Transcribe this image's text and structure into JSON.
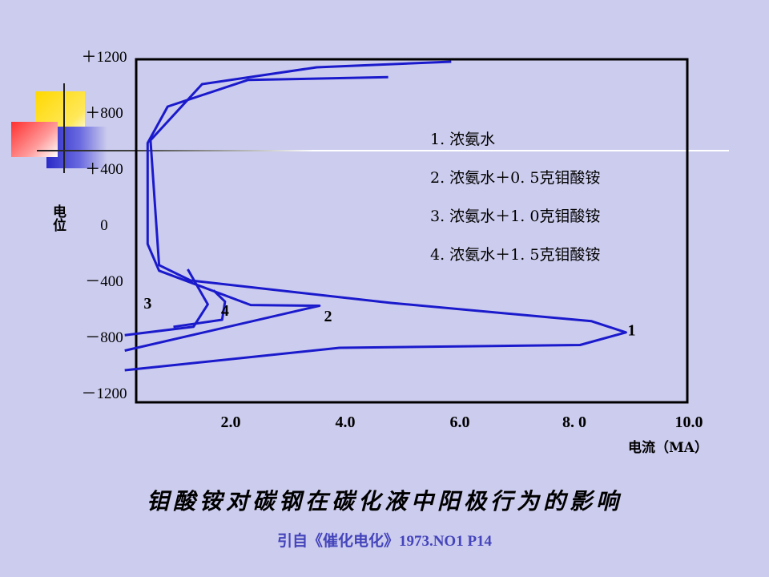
{
  "title": "钼酸铵对碳钢在碳化液中阳极行为的影响",
  "citation": "引自《催化电化》1973.NO1 P14",
  "colors": {
    "curve": "#1a1acc",
    "background": "#ccccee",
    "frame": "#000000"
  },
  "chart_data": {
    "type": "line",
    "xlabel": "电流（MA）",
    "ylabel": "电位",
    "xlim": [
      0,
      10.0
    ],
    "ylim": [
      -1200,
      1200
    ],
    "x_ticks": [
      {
        "value": 2.0,
        "label": "2.0"
      },
      {
        "value": 4.0,
        "label": "4.0"
      },
      {
        "value": 6.0,
        "label": "6.0"
      },
      {
        "value": 8.0,
        "label": "8. 0"
      },
      {
        "value": 10.0,
        "label": "10.0"
      }
    ],
    "y_ticks": [
      {
        "value": 1200,
        "label": "＋1200"
      },
      {
        "value": 800,
        "label": "＋800"
      },
      {
        "value": 400,
        "label": "＋400"
      },
      {
        "value": 0,
        "label": "0"
      },
      {
        "value": -400,
        "label": "－400"
      },
      {
        "value": -800,
        "label": "－800"
      },
      {
        "value": -1200,
        "label": "－1200"
      }
    ],
    "legend": [
      "1. 浓氨水",
      "2. 浓氨水＋0. 5克钼酸铵",
      "3. 浓氨水＋1. 0克钼酸铵",
      "4. 浓氨水＋1. 5克钼酸铵"
    ],
    "series": [
      {
        "name": "1",
        "points": [
          [
            0.15,
            -1040
          ],
          [
            3.9,
            -880
          ],
          [
            8.1,
            -860
          ],
          [
            8.9,
            -770
          ],
          [
            8.3,
            -690
          ],
          [
            4.8,
            -560
          ],
          [
            1.3,
            -400
          ],
          [
            0.75,
            -290
          ],
          [
            0.6,
            600
          ],
          [
            1.5,
            1000
          ],
          [
            3.5,
            1120
          ],
          [
            5.85,
            1160
          ]
        ],
        "label_at": [
          9.0,
          -790
        ]
      },
      {
        "name": "2",
        "points": [
          [
            0.15,
            -900
          ],
          [
            3.55,
            -580
          ],
          [
            2.35,
            -575
          ],
          [
            0.75,
            -330
          ],
          [
            0.55,
            -140
          ],
          [
            0.55,
            580
          ],
          [
            0.9,
            840
          ],
          [
            2.3,
            1030
          ],
          [
            4.75,
            1050
          ]
        ],
        "label_at": [
          3.7,
          -690
        ]
      },
      {
        "name": "3",
        "points": [
          [
            0.15,
            -790
          ],
          [
            1.35,
            -730
          ],
          [
            1.6,
            -570
          ],
          [
            1.25,
            -320
          ]
        ],
        "label_at": [
          0.55,
          -600
        ]
      },
      {
        "name": "4",
        "points": [
          [
            1.0,
            -730
          ],
          [
            1.85,
            -680
          ],
          [
            1.9,
            -550
          ],
          [
            1.7,
            -470
          ]
        ],
        "label_at": [
          1.9,
          -650
        ]
      }
    ]
  }
}
